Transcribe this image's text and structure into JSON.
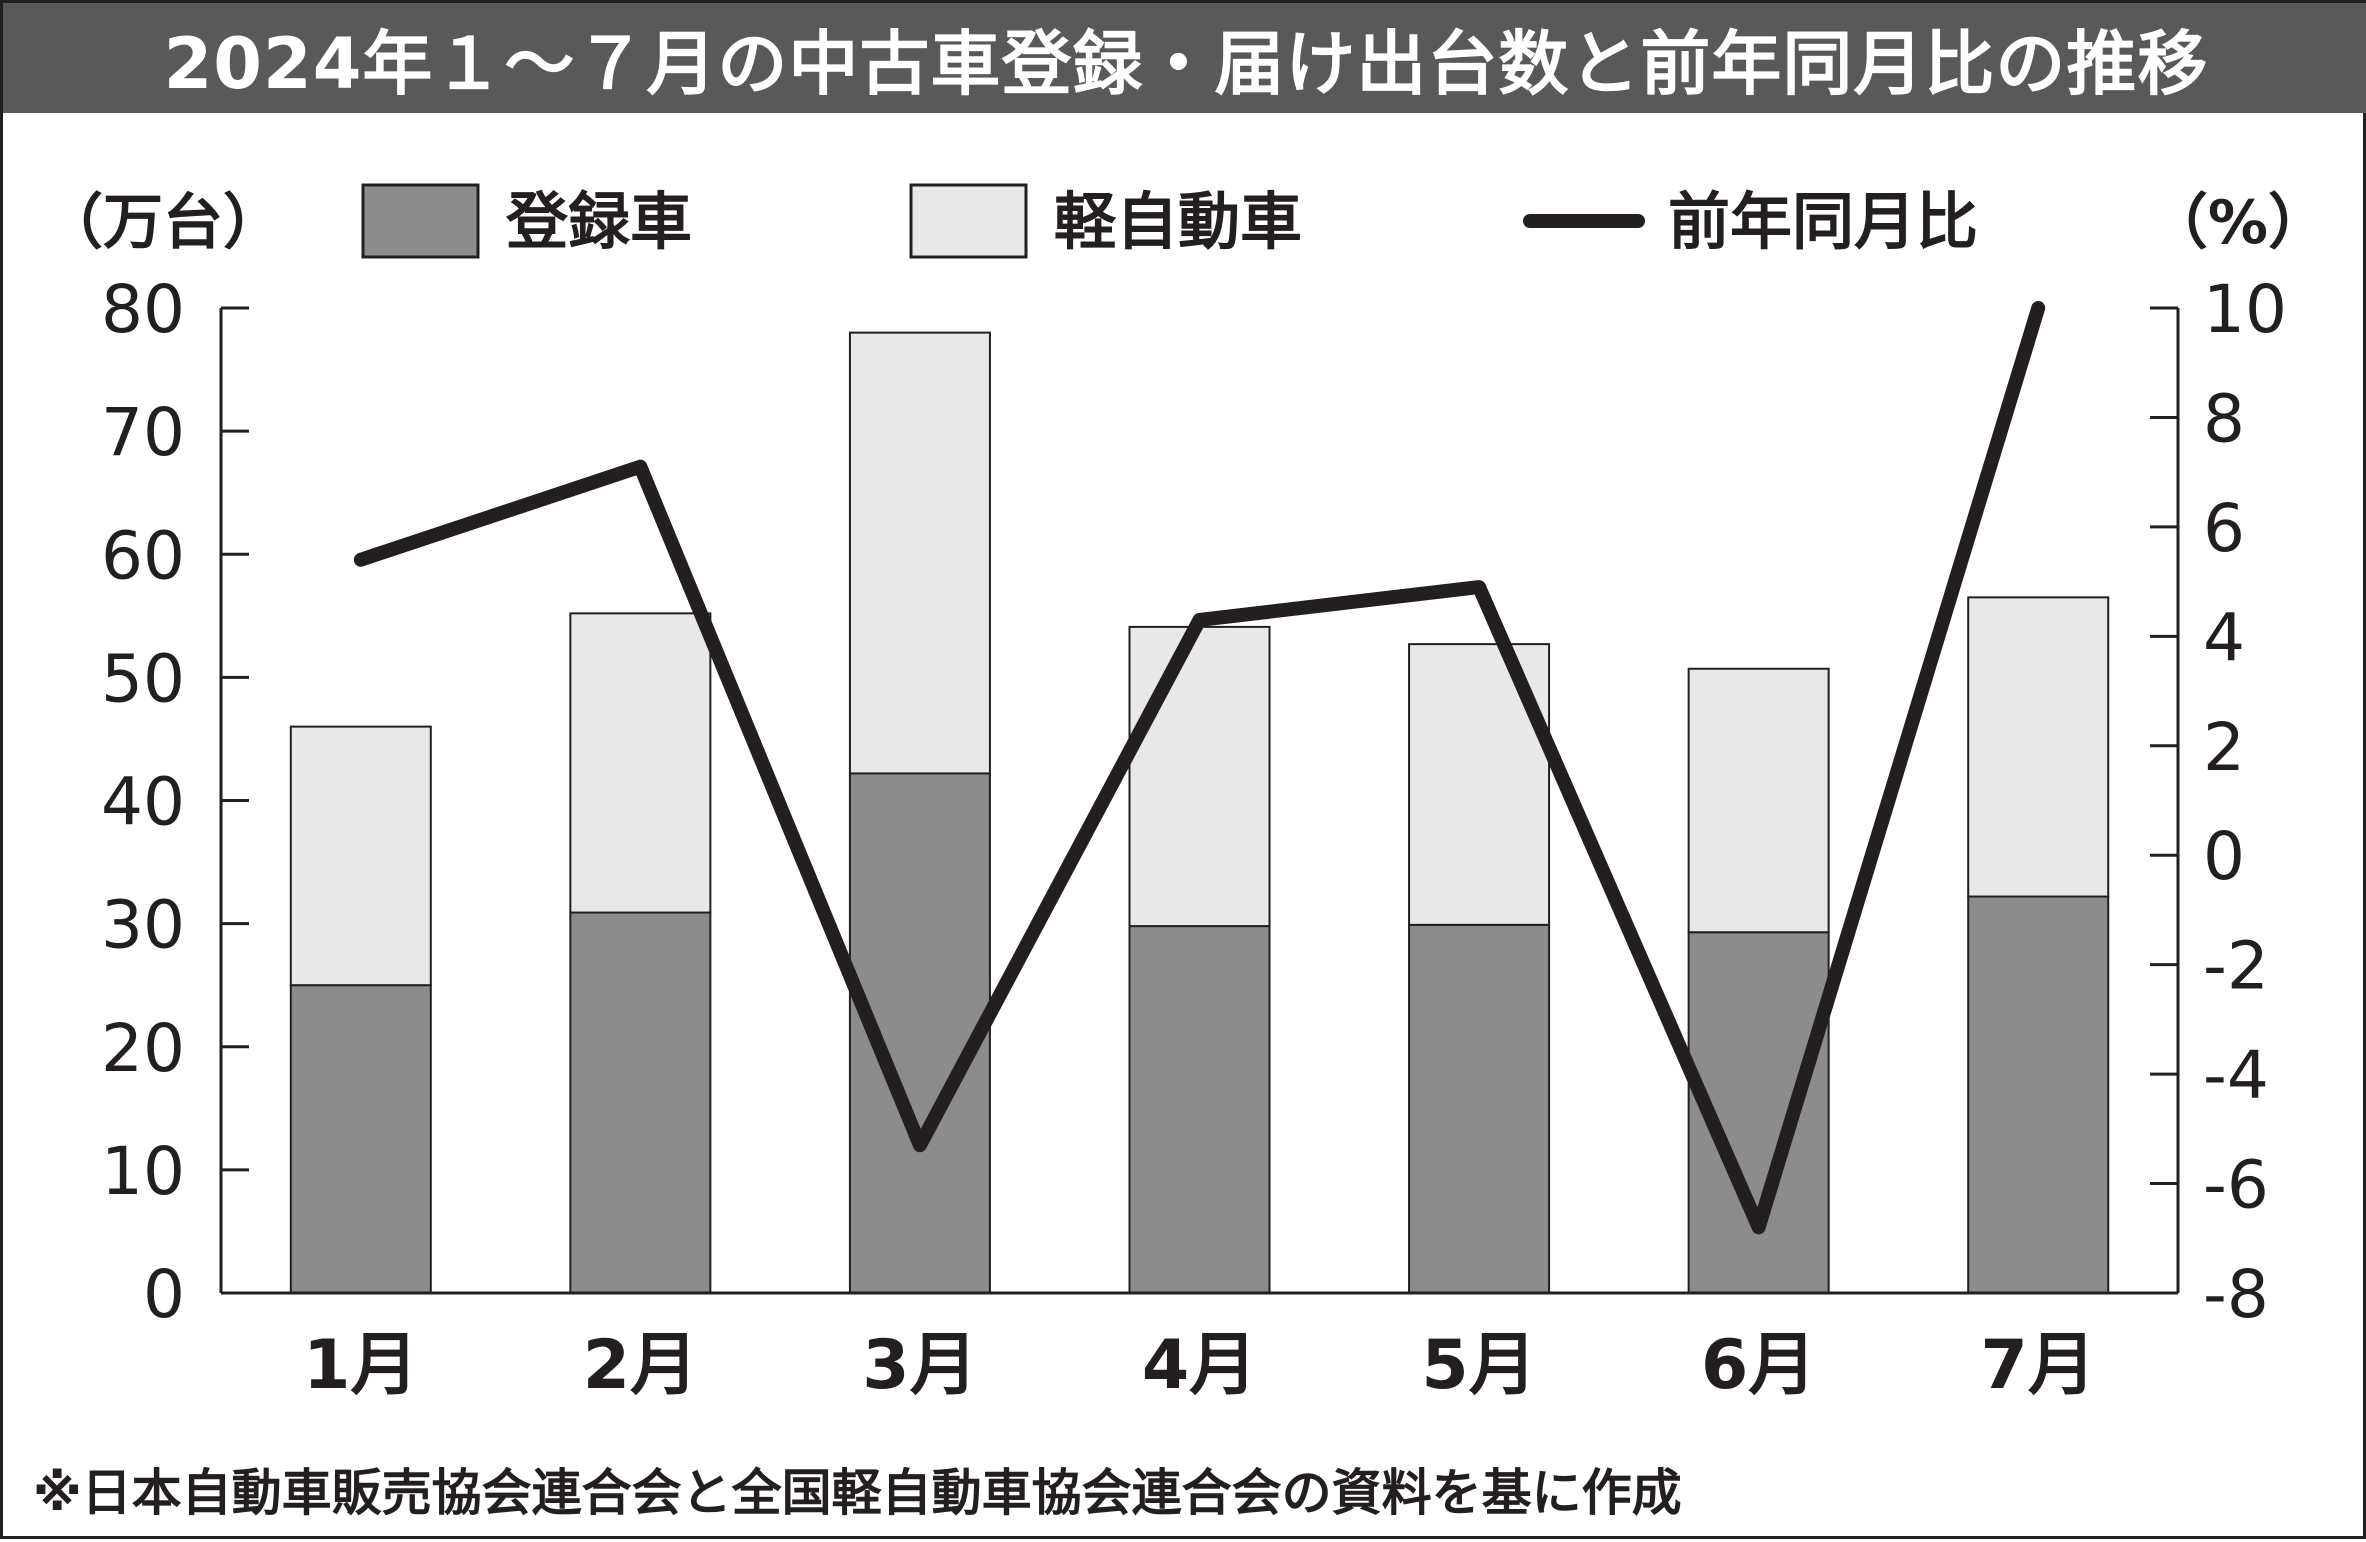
{
  "title": "2024年１～７月の中古車登録・届け出台数と前年同月比の推移",
  "footnote": "※日本自動車販売協会連合会と全国軽自動車協会連合会の資料を基に作成",
  "colors": {
    "registered": "#8c8c8c",
    "kei": "#e8e8e8",
    "line": "#231f20",
    "axis": "#231f20",
    "title_bg": "#595959"
  },
  "chart_data": {
    "type": "bar",
    "stacked": true,
    "categories": [
      "1月",
      "2月",
      "3月",
      "4月",
      "5月",
      "6月",
      "7月"
    ],
    "y_left_label": "（万台）",
    "y_right_label": "（%）",
    "y_left_lim": [
      0,
      80
    ],
    "y_left_ticks": [
      "0",
      "10",
      "20",
      "30",
      "40",
      "50",
      "60",
      "70",
      "80"
    ],
    "y_right_lim": [
      -8,
      10
    ],
    "y_right_ticks": [
      "-8",
      "-6",
      "-4",
      "-2",
      "0",
      "2",
      "4",
      "6",
      "8",
      "10"
    ],
    "grid": false,
    "legend_position": "top",
    "series": [
      {
        "name": "登録車",
        "type": "bar",
        "axis": "left",
        "values": [
          25.0,
          30.9,
          42.2,
          29.8,
          29.9,
          29.3,
          32.2
        ]
      },
      {
        "name": "軽自動車",
        "type": "bar",
        "axis": "left",
        "values": [
          21.0,
          24.3,
          35.8,
          24.3,
          22.8,
          21.4,
          24.3
        ]
      },
      {
        "name": "前年同月比",
        "type": "line",
        "axis": "right",
        "values": [
          5.4,
          7.1,
          -5.3,
          4.3,
          4.9,
          -6.8,
          10.0
        ]
      }
    ]
  }
}
